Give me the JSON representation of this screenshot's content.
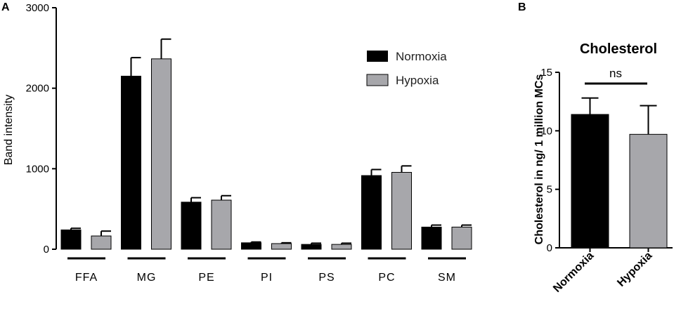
{
  "colors": {
    "normoxia": "#000000",
    "hypoxia": "#a7a7ab",
    "axis": "#000000"
  },
  "chart_data": [
    {
      "panel": "A",
      "type": "bar",
      "title": "",
      "xlabel": "",
      "ylabel": "Band intensity",
      "ylim": [
        0,
        3000
      ],
      "yticks": [
        0,
        1000,
        2000,
        3000
      ],
      "grid": false,
      "legend_position": "top-right",
      "categories": [
        "FFA",
        "MG",
        "PE",
        "PI",
        "PS",
        "PC",
        "SM"
      ],
      "series": [
        {
          "name": "Normoxia",
          "color": "#000000",
          "values": [
            240,
            2150,
            585,
            80,
            60,
            915,
            275
          ],
          "errors": [
            20,
            230,
            55,
            10,
            15,
            75,
            25
          ]
        },
        {
          "name": "Hypoxia",
          "color": "#a7a7ab",
          "values": [
            165,
            2365,
            610,
            70,
            60,
            955,
            275
          ],
          "errors": [
            60,
            245,
            55,
            10,
            15,
            80,
            25
          ]
        }
      ]
    },
    {
      "panel": "B",
      "type": "bar",
      "title": "Cholesterol",
      "xlabel": "",
      "ylabel": "Cholesterol in ng/ 1 million MCs",
      "ylim": [
        0,
        15
      ],
      "yticks": [
        0,
        5,
        10,
        15
      ],
      "grid": false,
      "categories": [
        "Normoxia",
        "Hypoxia"
      ],
      "colors": [
        "#000000",
        "#a7a7ab"
      ],
      "values": [
        11.4,
        9.7
      ],
      "errors": [
        1.4,
        2.45
      ],
      "annotation": "ns"
    }
  ]
}
